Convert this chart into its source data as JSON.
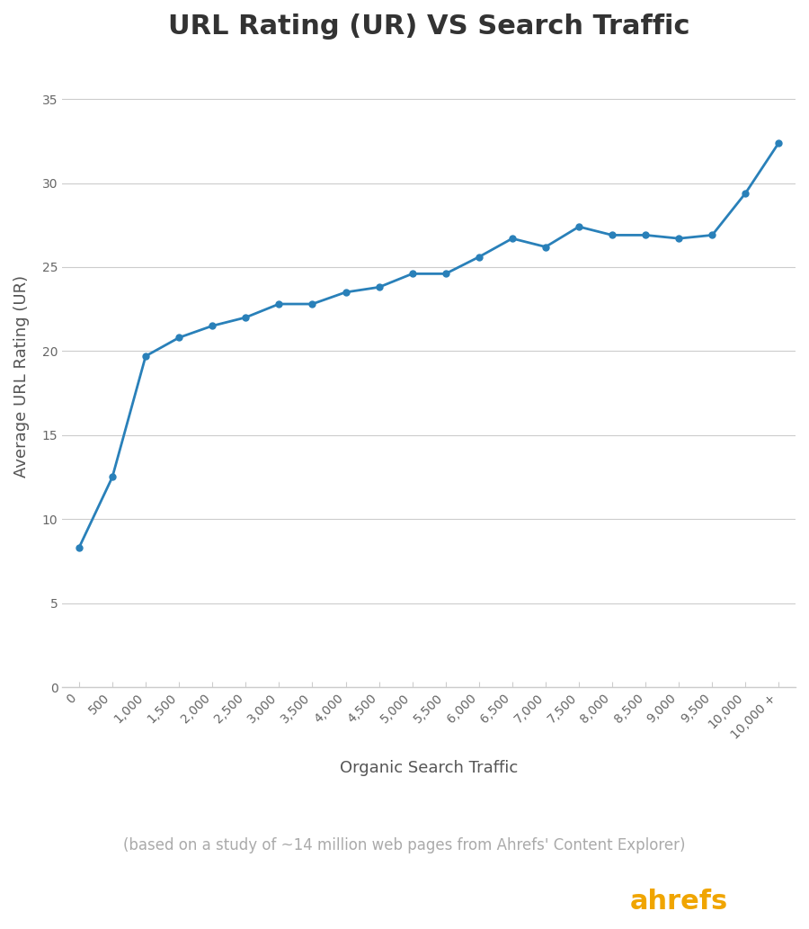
{
  "title": "URL Rating (UR) VS Search Traffic",
  "xlabel": "Organic Search Traffic",
  "ylabel": "Average URL Rating (UR)",
  "subtitle": "(based on a study of ~14 million web pages from Ahrefs' Content Explorer)",
  "x_labels": [
    "0",
    "500",
    "1,000",
    "1,500",
    "2,000",
    "2,500",
    "3,000",
    "3,500",
    "4,000",
    "4,500",
    "5,000",
    "5,500",
    "6,000",
    "6,500",
    "7,000",
    "7,500",
    "8,000",
    "8,500",
    "9,000",
    "9,500",
    "10,000",
    "10,000 +"
  ],
  "y_values": [
    8.3,
    12.5,
    19.7,
    20.8,
    21.5,
    22.0,
    22.8,
    22.8,
    23.5,
    23.8,
    24.6,
    24.6,
    25.6,
    26.7,
    26.2,
    27.4,
    26.9,
    26.9,
    26.7,
    26.9,
    29.4,
    32.4
  ],
  "line_color": "#2980b9",
  "marker_color": "#2980b9",
  "grid_color": "#cccccc",
  "axis_color": "#cccccc",
  "tick_label_color": "#666666",
  "title_color": "#333333",
  "label_color": "#555555",
  "subtitle_color": "#aaaaaa",
  "ahrefs_orange": "#f0a500",
  "ylim": [
    0,
    37
  ],
  "yticks": [
    0,
    5,
    10,
    15,
    20,
    25,
    30,
    35
  ],
  "background_color": "#ffffff",
  "title_fontsize": 22,
  "label_fontsize": 13,
  "tick_fontsize": 10,
  "subtitle_fontsize": 12,
  "ahrefs_fontsize": 22
}
